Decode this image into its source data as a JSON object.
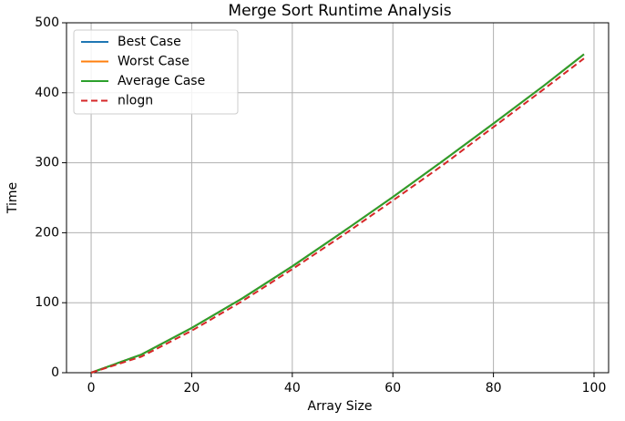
{
  "chart_data": {
    "type": "line",
    "title": "Merge Sort Runtime Analysis",
    "x_label": "Array Size",
    "y_label": "Time",
    "x": [
      0,
      10,
      20,
      30,
      40,
      50,
      60,
      70,
      80,
      90,
      98
    ],
    "series": [
      {
        "name": "Best Case",
        "color": "#1f77b4",
        "linestyle": "solid",
        "values": [
          0,
          26,
          64,
          106,
          152,
          201,
          251,
          303,
          356,
          410,
          455
        ]
      },
      {
        "name": "Worst Case",
        "color": "#ff7f0e",
        "linestyle": "solid",
        "values": [
          0,
          26,
          64,
          106,
          152,
          201,
          251,
          303,
          356,
          410,
          455
        ]
      },
      {
        "name": "Average Case",
        "color": "#2ca02c",
        "linestyle": "solid",
        "values": [
          0,
          26,
          64,
          106,
          152,
          201,
          251,
          303,
          356,
          410,
          455
        ]
      },
      {
        "name": "nlogn",
        "color": "#d62728",
        "linestyle": "dashed",
        "values": [
          0,
          23,
          60,
          102,
          148,
          196,
          246,
          297,
          351,
          405,
          449
        ]
      }
    ],
    "xlim": [
      -4.9,
      102.9
    ],
    "ylim": [
      0,
      500
    ],
    "xticks": [
      0,
      20,
      40,
      60,
      80,
      100
    ],
    "yticks": [
      0,
      100,
      200,
      300,
      400,
      500
    ],
    "grid": true,
    "legend": "upper-left"
  }
}
